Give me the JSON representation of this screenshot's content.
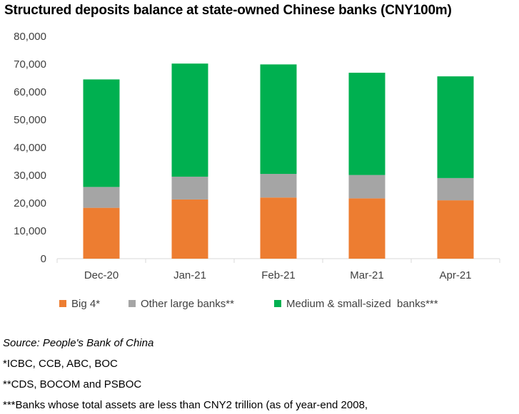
{
  "title": "Structured deposits balance at state-owned Chinese banks (CNY100m)",
  "notes": {
    "source": "Source: People's Bank of China",
    "note1": "*ICBC, CCB, ABC, BOC",
    "note2": "**CDS, BOCOM and PSBOC",
    "note3": "***Banks whose total assets are less than CNY2 trillion (as of year-end 2008,"
  },
  "colors": {
    "big4": "#ED7D31",
    "other_large": "#A5A5A5",
    "medium_small": "#00B050"
  },
  "chart_data": {
    "type": "bar",
    "stacked": true,
    "title": "Structured deposits balance at state-owned Chinese banks (CNY100m)",
    "categories": [
      "Dec-20",
      "Jan-21",
      "Feb-21",
      "Mar-21",
      "Apr-21"
    ],
    "series": [
      {
        "name": "Big 4*",
        "values": [
          18300,
          21300,
          22000,
          21700,
          21000
        ]
      },
      {
        "name": "Other large banks**",
        "values": [
          7500,
          8200,
          8500,
          8400,
          8000
        ]
      },
      {
        "name": "Medium & small-sized  banks***",
        "values": [
          38700,
          40700,
          39400,
          36800,
          36600
        ]
      }
    ],
    "ylim": [
      0,
      80000
    ],
    "yticks": [
      0,
      10000,
      20000,
      30000,
      40000,
      50000,
      60000,
      70000,
      80000
    ],
    "ytick_labels": [
      "0",
      "10,000",
      "20,000",
      "30,000",
      "40,000",
      "50,000",
      "60,000",
      "70,000",
      "80,000"
    ],
    "grid": false,
    "legend_position": "bottom"
  }
}
